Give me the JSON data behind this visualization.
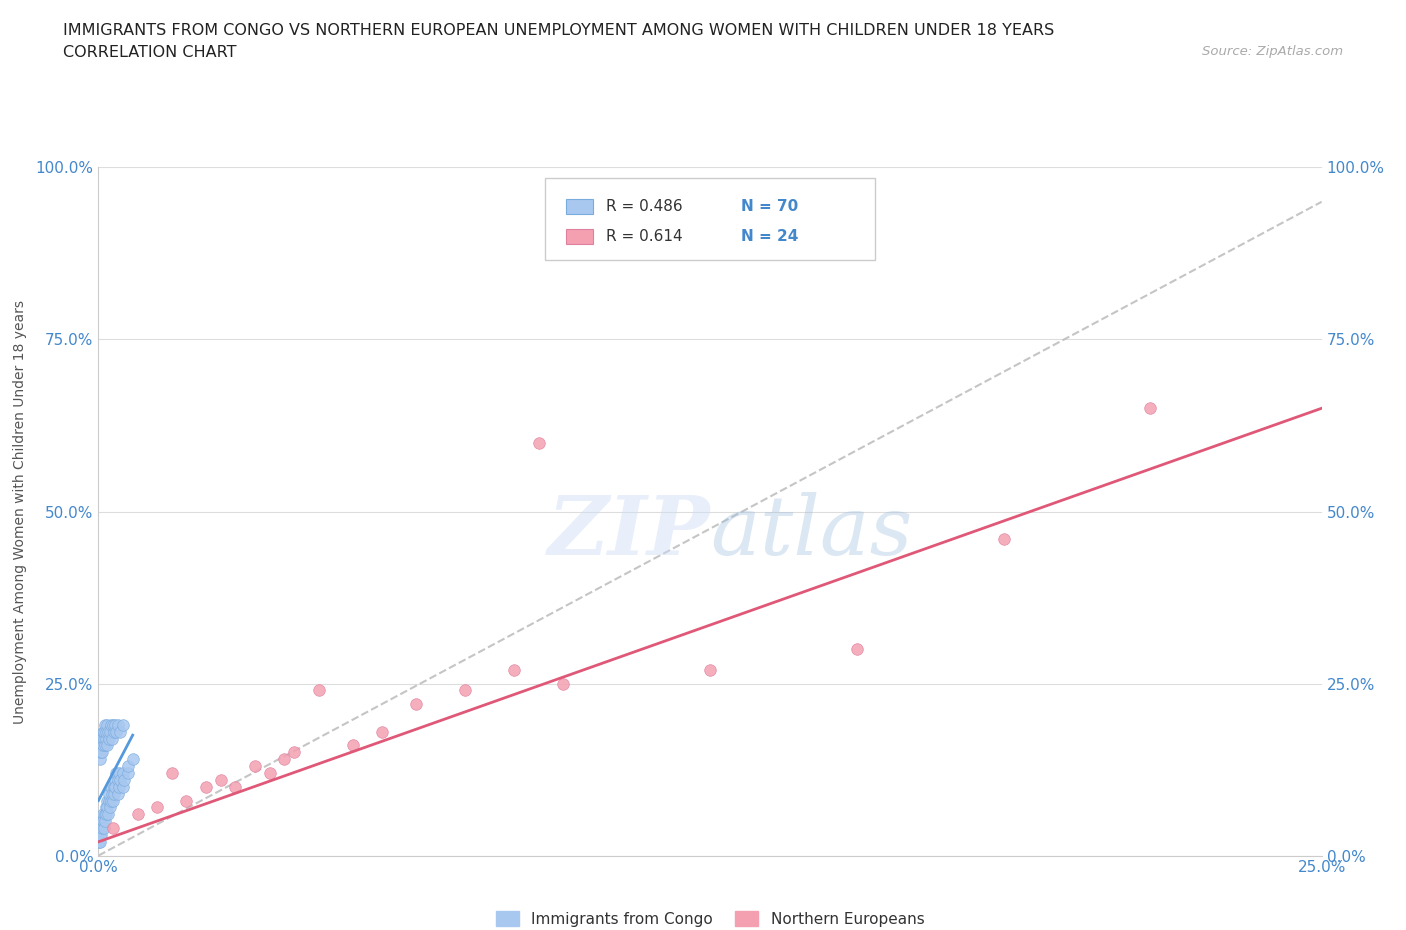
{
  "title_line1": "IMMIGRANTS FROM CONGO VS NORTHERN EUROPEAN UNEMPLOYMENT AMONG WOMEN WITH CHILDREN UNDER 18 YEARS",
  "title_line2": "CORRELATION CHART",
  "source": "Source: ZipAtlas.com",
  "ylabel": "Unemployment Among Women with Children Under 18 years",
  "xlim": [
    0.0,
    0.25
  ],
  "ylim": [
    0.0,
    1.0
  ],
  "xtick_labels": [
    "0.0%",
    "25.0%"
  ],
  "ytick_labels": [
    "0.0%",
    "25.0%",
    "50.0%",
    "75.0%",
    "100.0%"
  ],
  "ytick_values": [
    0.0,
    0.25,
    0.5,
    0.75,
    1.0
  ],
  "xtick_values": [
    0.0,
    0.25
  ],
  "legend_r1": "R = 0.486",
  "legend_n1": "N = 70",
  "legend_r2": "R = 0.614",
  "legend_n2": "N = 24",
  "color_congo": "#a8c8f0",
  "color_northern": "#f4a0b0",
  "color_trendline_congo_solid": "#5599dd",
  "color_trendline_northern": "#e05878",
  "color_trendline_dashed": "#bbbbbb",
  "color_axis_labels": "#4488cc",
  "grid_color": "#dddddd",
  "background_color": "#ffffff",
  "congo_x": [
    0.0002,
    0.0003,
    0.0004,
    0.0005,
    0.0006,
    0.0007,
    0.0008,
    0.0009,
    0.001,
    0.0012,
    0.0013,
    0.0014,
    0.0015,
    0.0016,
    0.0017,
    0.0018,
    0.002,
    0.0021,
    0.0022,
    0.0023,
    0.0025,
    0.0026,
    0.0027,
    0.003,
    0.0031,
    0.0032,
    0.0033,
    0.0034,
    0.0035,
    0.004,
    0.0041,
    0.0042,
    0.0043,
    0.0044,
    0.005,
    0.0051,
    0.0052,
    0.006,
    0.0061,
    0.007,
    0.0001,
    0.0002,
    0.0003,
    0.0004,
    0.0005,
    0.0006,
    0.0007,
    0.0008,
    0.0009,
    0.001,
    0.0011,
    0.0012,
    0.0013,
    0.0014,
    0.0015,
    0.0016,
    0.0017,
    0.0018,
    0.002,
    0.0022,
    0.0024,
    0.0026,
    0.0028,
    0.003,
    0.0032,
    0.0034,
    0.0036,
    0.004,
    0.0045,
    0.005
  ],
  "congo_y": [
    0.02,
    0.03,
    0.02,
    0.04,
    0.03,
    0.05,
    0.04,
    0.06,
    0.05,
    0.04,
    0.06,
    0.05,
    0.07,
    0.06,
    0.08,
    0.07,
    0.06,
    0.08,
    0.09,
    0.07,
    0.08,
    0.1,
    0.09,
    0.08,
    0.1,
    0.09,
    0.11,
    0.1,
    0.12,
    0.09,
    0.11,
    0.1,
    0.12,
    0.11,
    0.1,
    0.12,
    0.11,
    0.12,
    0.13,
    0.14,
    0.15,
    0.16,
    0.14,
    0.17,
    0.15,
    0.16,
    0.17,
    0.15,
    0.18,
    0.16,
    0.17,
    0.18,
    0.16,
    0.19,
    0.17,
    0.18,
    0.19,
    0.16,
    0.18,
    0.17,
    0.18,
    0.19,
    0.17,
    0.19,
    0.18,
    0.19,
    0.18,
    0.19,
    0.18,
    0.19
  ],
  "northern_x": [
    0.003,
    0.008,
    0.012,
    0.015,
    0.018,
    0.022,
    0.025,
    0.028,
    0.032,
    0.035,
    0.038,
    0.04,
    0.045,
    0.09,
    0.052,
    0.058,
    0.065,
    0.075,
    0.085,
    0.095,
    0.185,
    0.125,
    0.155,
    0.215
  ],
  "northern_y": [
    0.04,
    0.06,
    0.07,
    0.12,
    0.08,
    0.1,
    0.11,
    0.1,
    0.13,
    0.12,
    0.14,
    0.15,
    0.24,
    0.6,
    0.16,
    0.18,
    0.22,
    0.24,
    0.27,
    0.25,
    0.46,
    0.27,
    0.3,
    0.65
  ],
  "dashed_line_x": [
    0.0,
    0.25
  ],
  "dashed_line_y": [
    0.0,
    0.95
  ],
  "congo_trend_x": [
    0.0,
    0.007
  ],
  "congo_trend_y": [
    0.08,
    0.175
  ],
  "northern_trend_x": [
    0.0,
    0.25
  ],
  "northern_trend_y": [
    0.02,
    0.65
  ]
}
